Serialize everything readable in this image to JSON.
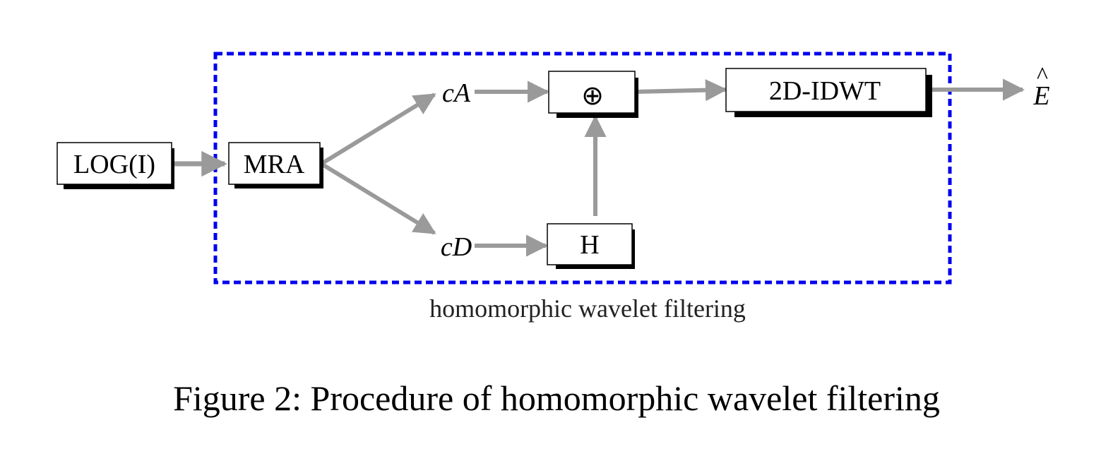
{
  "diagram": {
    "input_label": "LOG(I)",
    "mra_label": "MRA",
    "ca_label": "cA",
    "cd_label": "cD",
    "adder_symbol": "⊕",
    "h_label": "H",
    "idwt_label": "2D-IDWT",
    "output_label": "E",
    "output_hat": "^",
    "region_label": "homomorphic wavelet filtering"
  },
  "colors": {
    "arrow": "#9a9a9a",
    "region_border": "#0000ee",
    "box_shadow": "#000000"
  },
  "caption": "Figure 2: Procedure of homomorphic wavelet filtering"
}
